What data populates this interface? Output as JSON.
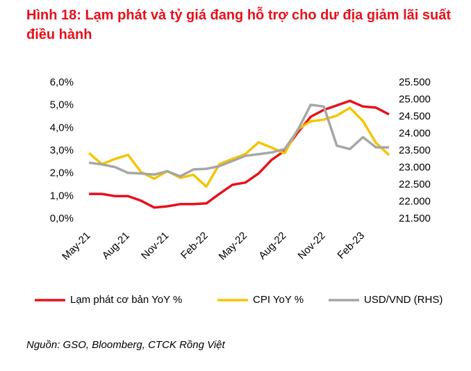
{
  "chart_data": {
    "type": "line",
    "title": "Hình 18: Lạm phát và tỷ giá đang hỗ trợ cho dư địa giảm lãi suất điều hành",
    "source": "Nguồn: GSO, Bloomberg, CTCK Rồng Việt",
    "categories": [
      "May-21",
      null,
      null,
      "Aug-21",
      null,
      null,
      "Nov-21",
      null,
      null,
      "Feb-22",
      null,
      null,
      "May-22",
      null,
      null,
      "Aug-22",
      null,
      null,
      "Nov-22",
      null,
      null,
      "Feb-23",
      null,
      null
    ],
    "series": [
      {
        "name": "Lạm phát cơ bản YoY %",
        "color": "#e8101a",
        "values": [
          1.1,
          1.1,
          1.0,
          1.0,
          0.8,
          0.5,
          0.55,
          0.65,
          0.65,
          0.68,
          1.1,
          1.5,
          1.6,
          2.0,
          2.6,
          3.0,
          3.8,
          4.5,
          4.8,
          5.0,
          5.2,
          4.95,
          4.9,
          4.6
        ]
      },
      {
        "name": "CPI YoY %",
        "color": "#f5c400",
        "values": [
          2.9,
          2.41,
          2.64,
          2.82,
          2.06,
          1.77,
          2.1,
          1.81,
          1.94,
          1.42,
          2.41,
          2.64,
          2.86,
          3.37,
          3.14,
          2.89,
          3.94,
          4.3,
          4.37,
          4.55,
          4.89,
          4.31,
          3.35,
          2.81
        ]
      },
      {
        "name": "USD/VND (RHS)",
        "color": "#a6a6a6",
        "axis": "y2",
        "values": [
          23150,
          23100,
          23020,
          22850,
          22830,
          22800,
          22900,
          22750,
          22950,
          22970,
          23050,
          23200,
          23350,
          23400,
          23450,
          23550,
          24100,
          24850,
          24800,
          23650,
          23550,
          23900,
          23600,
          23600
        ]
      }
    ],
    "ylim": [
      0,
      6
    ],
    "yticks": [
      {
        "value": 0,
        "label": "0,0%"
      },
      {
        "value": 1,
        "label": "1,0%"
      },
      {
        "value": 2,
        "label": "2,0%"
      },
      {
        "value": 3,
        "label": "3,0%"
      },
      {
        "value": 4,
        "label": "4,0%"
      },
      {
        "value": 5,
        "label": "5,0%"
      },
      {
        "value": 6,
        "label": "6,0%"
      }
    ],
    "y2lim": [
      21500,
      25500
    ],
    "y2ticks": [
      {
        "value": 21500,
        "label": "21.500"
      },
      {
        "value": 22000,
        "label": "22.000"
      },
      {
        "value": 22500,
        "label": "22.500"
      },
      {
        "value": 23000,
        "label": "23.000"
      },
      {
        "value": 23500,
        "label": "23.500"
      },
      {
        "value": 24000,
        "label": "24.000"
      },
      {
        "value": 24500,
        "label": "24.500"
      },
      {
        "value": 25000,
        "label": "25.000"
      },
      {
        "value": 25500,
        "label": "25.500"
      }
    ],
    "grid": false,
    "legend": "bottom"
  }
}
